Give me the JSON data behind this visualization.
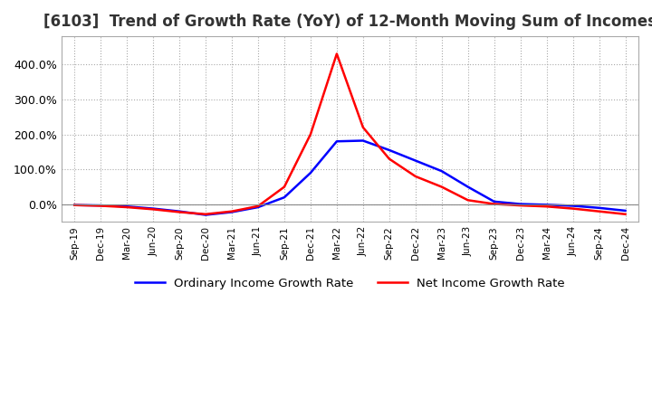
{
  "title": "[6103]  Trend of Growth Rate (YoY) of 12-Month Moving Sum of Incomes",
  "title_fontsize": 12,
  "background_color": "#ffffff",
  "grid_color": "#aaaaaa",
  "legend_labels": [
    "Ordinary Income Growth Rate",
    "Net Income Growth Rate"
  ],
  "legend_colors": [
    "#0000ff",
    "#ff0000"
  ],
  "x_labels": [
    "Sep-19",
    "Dec-19",
    "Mar-20",
    "Jun-20",
    "Sep-20",
    "Dec-20",
    "Mar-21",
    "Jun-21",
    "Sep-21",
    "Dec-21",
    "Mar-22",
    "Jun-22",
    "Sep-22",
    "Dec-22",
    "Mar-23",
    "Jun-23",
    "Sep-23",
    "Dec-23",
    "Mar-24",
    "Jun-24",
    "Sep-24",
    "Dec-24"
  ],
  "ordinary_income": [
    -0.02,
    -0.03,
    -0.06,
    -0.12,
    -0.2,
    -0.3,
    -0.22,
    -0.08,
    0.2,
    0.9,
    1.8,
    1.82,
    1.55,
    1.25,
    0.95,
    0.5,
    0.08,
    0.01,
    -0.01,
    -0.04,
    -0.1,
    -0.18
  ],
  "net_income": [
    -0.02,
    -0.04,
    -0.08,
    -0.14,
    -0.22,
    -0.28,
    -0.2,
    -0.05,
    0.5,
    2.0,
    4.3,
    2.2,
    1.3,
    0.8,
    0.5,
    0.12,
    0.01,
    -0.03,
    -0.06,
    -0.12,
    -0.2,
    -0.28
  ],
  "ytick_vals": [
    0.0,
    1.0,
    2.0,
    3.0,
    4.0
  ],
  "ytick_labels": [
    "0.0%",
    "100.0%",
    "200.0%",
    "300.0%",
    "400.0%"
  ],
  "ylim_min": -0.5,
  "ylim_max": 4.8
}
